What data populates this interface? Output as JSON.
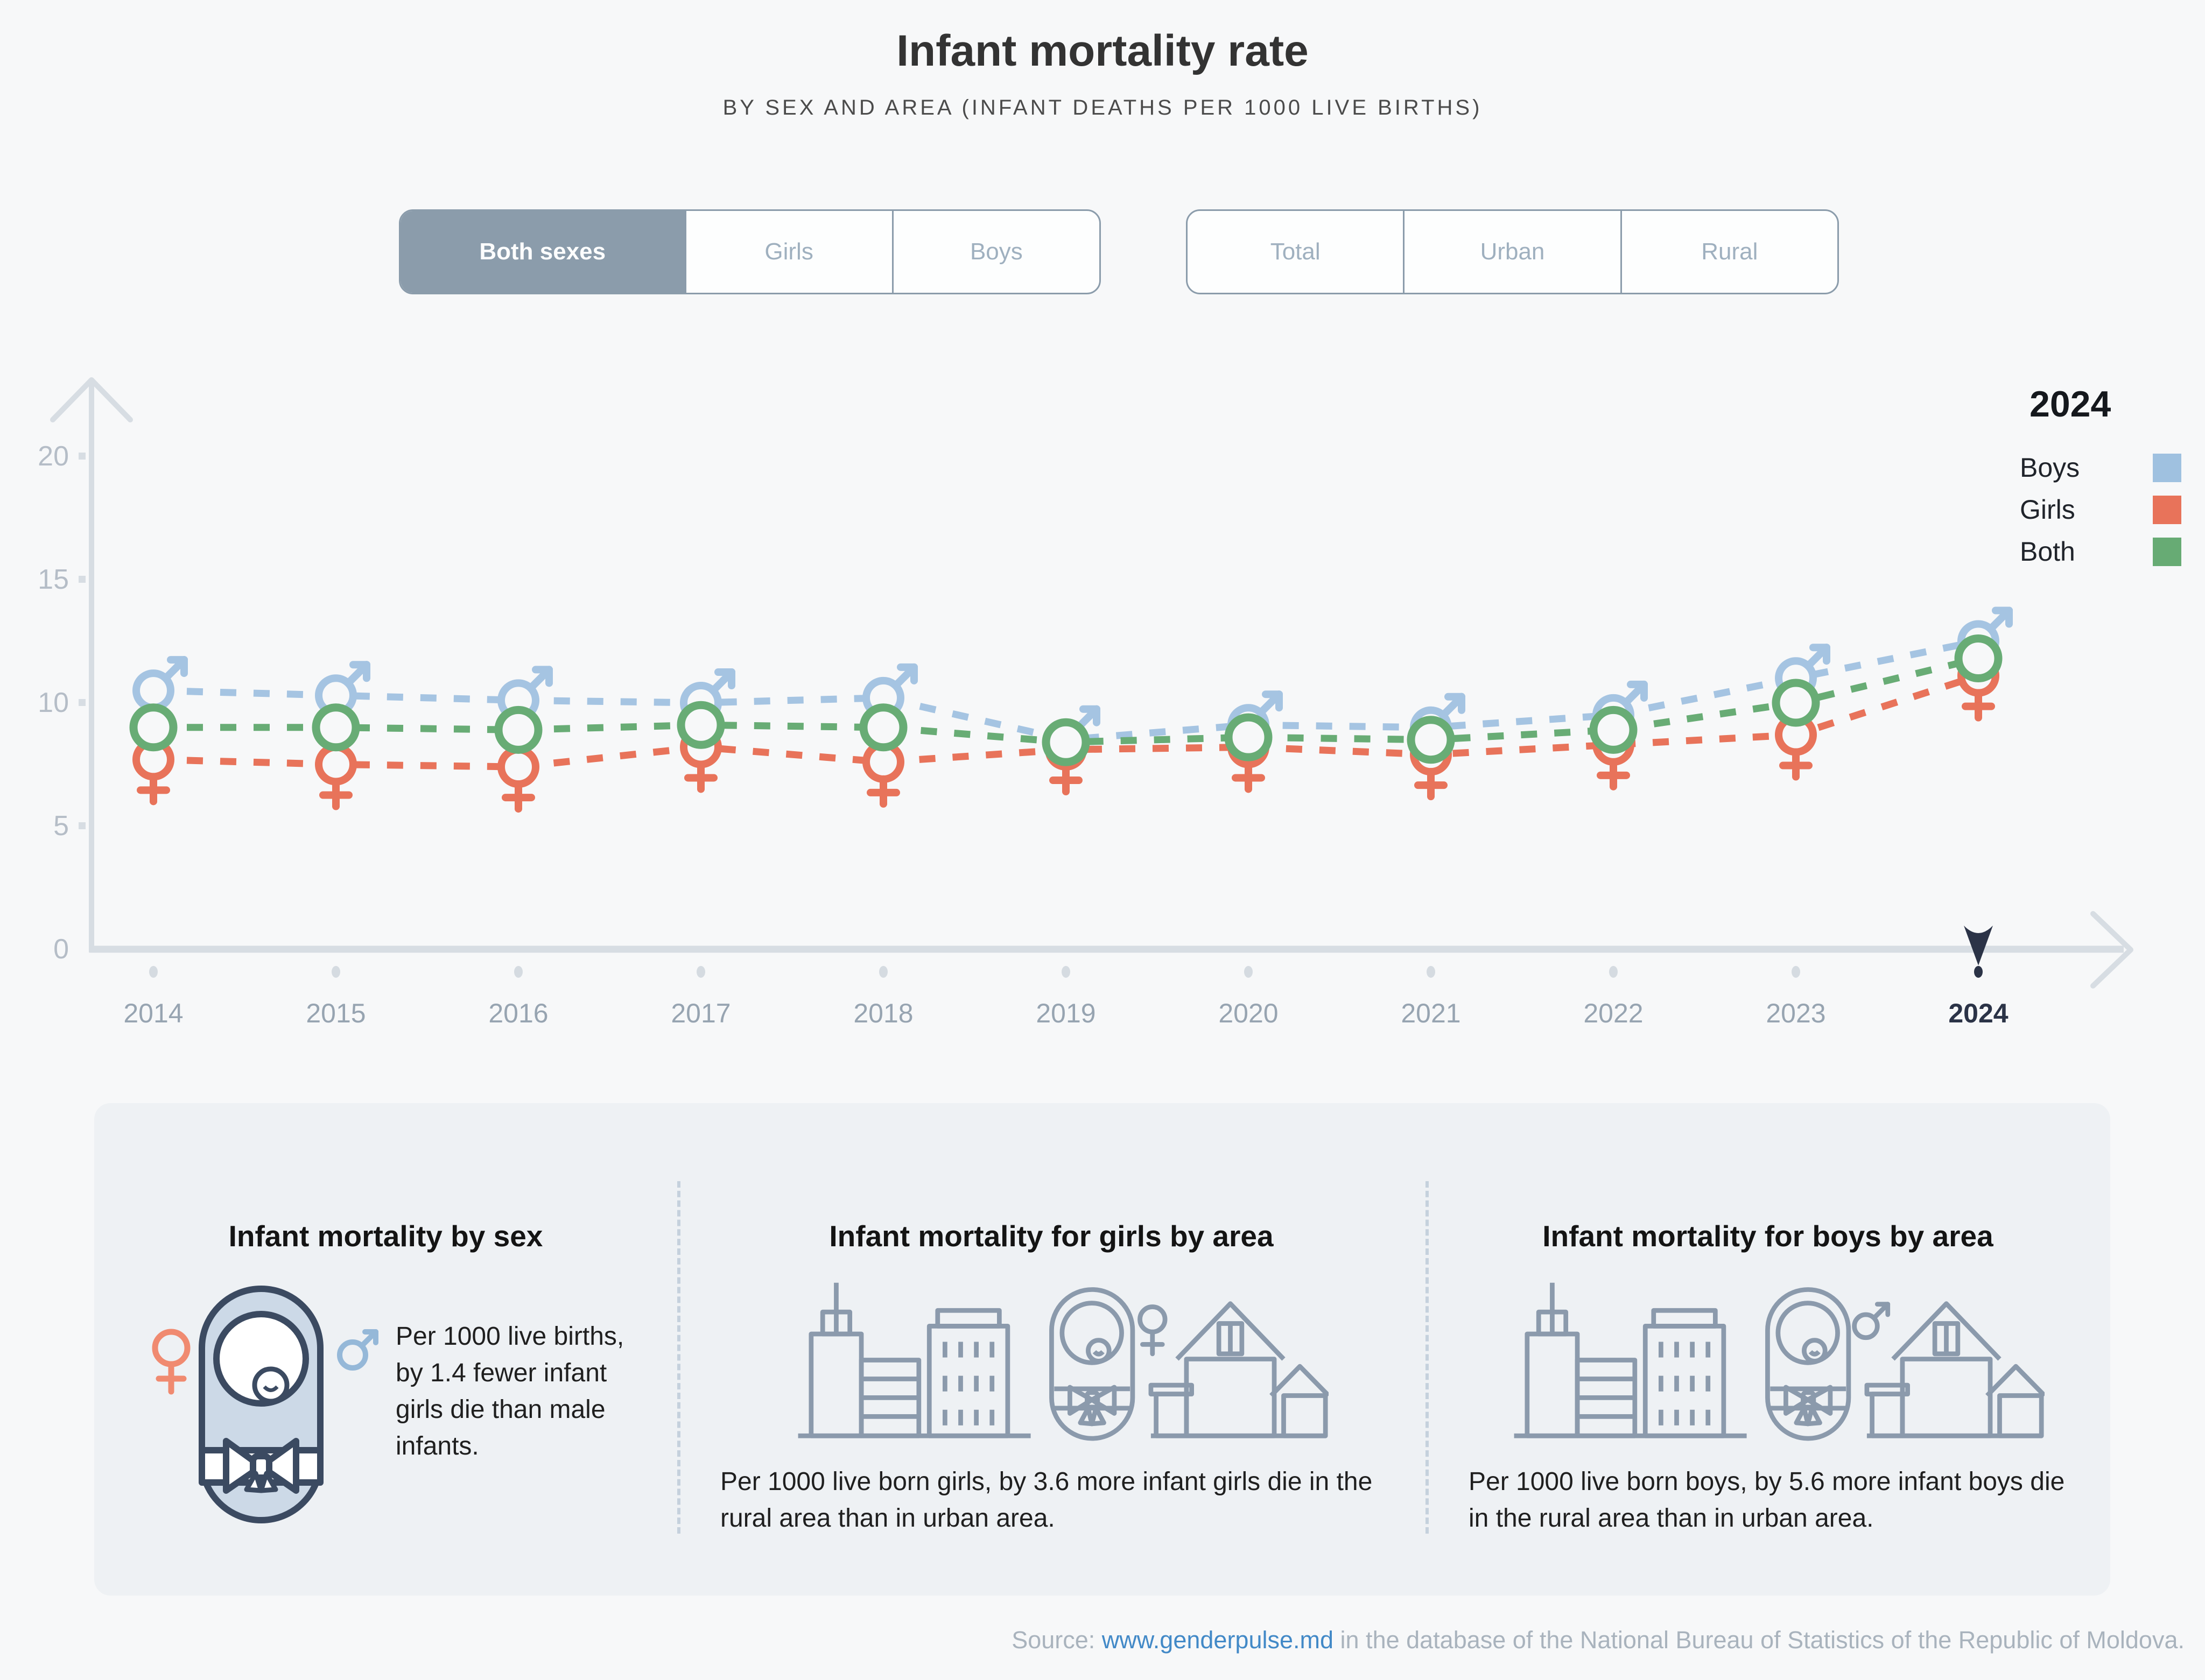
{
  "header": {
    "title": "Infant mortality rate",
    "subtitle": "BY SEX AND AREA (INFANT DEATHS PER 1000 LIVE BIRTHS)"
  },
  "controls": {
    "sex_toggle": {
      "options": [
        {
          "label": "Both sexes",
          "selected": true
        },
        {
          "label": "Girls",
          "selected": false
        },
        {
          "label": "Boys",
          "selected": false
        }
      ]
    },
    "area_toggle": {
      "options": [
        {
          "label": "Total",
          "selected": false
        },
        {
          "label": "Urban",
          "selected": false
        },
        {
          "label": "Rural",
          "selected": false
        }
      ]
    }
  },
  "legend": {
    "year": "2024",
    "items": [
      {
        "label": "Boys",
        "color": "#9fc1e0"
      },
      {
        "label": "Girls",
        "color": "#e8735a"
      },
      {
        "label": "Both",
        "color": "#67ab74"
      }
    ]
  },
  "chart_data": {
    "type": "line",
    "x": [
      2014,
      2015,
      2016,
      2017,
      2018,
      2019,
      2020,
      2021,
      2022,
      2023,
      2024
    ],
    "series": [
      {
        "name": "Boys",
        "marker": "male",
        "color": "#a5c4e2",
        "values": [
          10.5,
          10.3,
          10.1,
          10.0,
          10.2,
          8.5,
          9.1,
          9.0,
          9.5,
          11.0,
          12.5
        ]
      },
      {
        "name": "Girls",
        "marker": "female",
        "color": "#e8735a",
        "values": [
          7.7,
          7.5,
          7.4,
          8.2,
          7.6,
          8.1,
          8.2,
          7.9,
          8.3,
          8.7,
          11.1
        ]
      },
      {
        "name": "Both",
        "marker": "circle",
        "color": "#68ac75",
        "values": [
          9.0,
          9.0,
          8.9,
          9.1,
          9.0,
          8.4,
          8.6,
          8.5,
          8.9,
          10.0,
          11.8
        ]
      }
    ],
    "ylabel": "",
    "ylim": [
      0,
      20
    ],
    "yticks": [
      0,
      5,
      10,
      15,
      20
    ],
    "highlight_year": 2024,
    "grid": false,
    "legend_position": "top-right",
    "line_style": "dashed"
  },
  "cards": [
    {
      "title": "Infant mortality by sex",
      "text": "Per 1000 live births, by 1.4 fewer infant girls die than male infants."
    },
    {
      "title": "Infant mortality for girls by area",
      "text": "Per 1000 live born girls, by 3.6 more infant girls die in the rural area than in urban area."
    },
    {
      "title": "Infant mortality for boys by area",
      "text": "Per 1000 live born boys, by 5.6 more infant boys die in the rural area than in urban area."
    }
  ],
  "source": {
    "prefix": "Source: ",
    "link": "www.genderpulse.md",
    "suffix": " in the database of the National Bureau of Statistics of the Republic of Moldova."
  },
  "colors": {
    "axis": "#d7dde3",
    "tick_text": "#b5bdc7",
    "year_text": "#97a4b1",
    "highlight": "#2b3347",
    "toggle_selected_bg": "#8b9cab",
    "panel_bg": "#eef1f4",
    "page_bg": "#f7f8f9"
  }
}
